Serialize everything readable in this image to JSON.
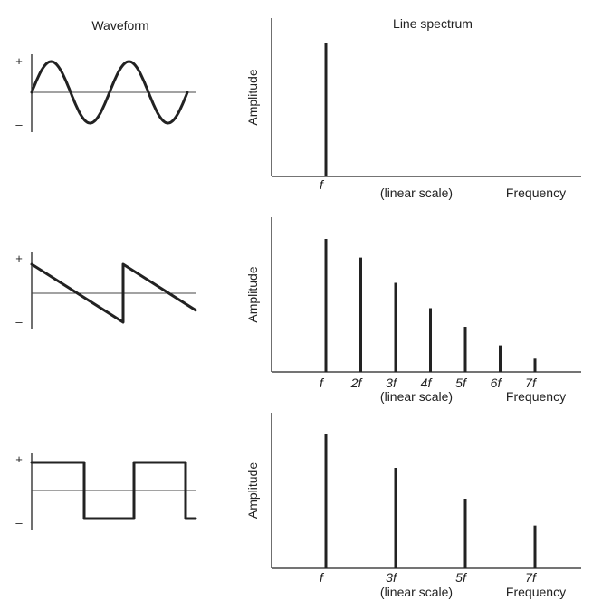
{
  "headers": {
    "waveform": "Waveform",
    "line_spectrum": "Line spectrum"
  },
  "rows": [
    {
      "waveform": "sine",
      "plus": "+",
      "minus": "–",
      "amplitude_label": "Amplitude",
      "scale_label": "(linear scale)",
      "frequency_label": "Frequency",
      "harmonics": [
        {
          "label": "f",
          "n": 1,
          "amplitude": 1.0
        }
      ]
    },
    {
      "waveform": "sawtooth",
      "plus": "+",
      "minus": "–",
      "amplitude_label": "Amplitude",
      "scale_label": "(linear scale)",
      "frequency_label": "Frequency",
      "harmonics": [
        {
          "label": "f",
          "n": 1,
          "amplitude": 1.0
        },
        {
          "label": "2f",
          "n": 2,
          "amplitude": 0.86
        },
        {
          "label": "3f",
          "n": 3,
          "amplitude": 0.67
        },
        {
          "label": "4f",
          "n": 4,
          "amplitude": 0.48
        },
        {
          "label": "5f",
          "n": 5,
          "amplitude": 0.34
        },
        {
          "label": "6f",
          "n": 6,
          "amplitude": 0.2
        },
        {
          "label": "7f",
          "n": 7,
          "amplitude": 0.1
        }
      ]
    },
    {
      "waveform": "square",
      "plus": "+",
      "minus": "–",
      "amplitude_label": "Amplitude",
      "scale_label": "(linear scale)",
      "frequency_label": "Frequency",
      "harmonics": [
        {
          "label": "f",
          "n": 1,
          "amplitude": 1.0
        },
        {
          "label": "3f",
          "n": 3,
          "amplitude": 0.75
        },
        {
          "label": "5f",
          "n": 5,
          "amplitude": 0.52
        },
        {
          "label": "7f",
          "n": 7,
          "amplitude": 0.32
        }
      ]
    }
  ]
}
